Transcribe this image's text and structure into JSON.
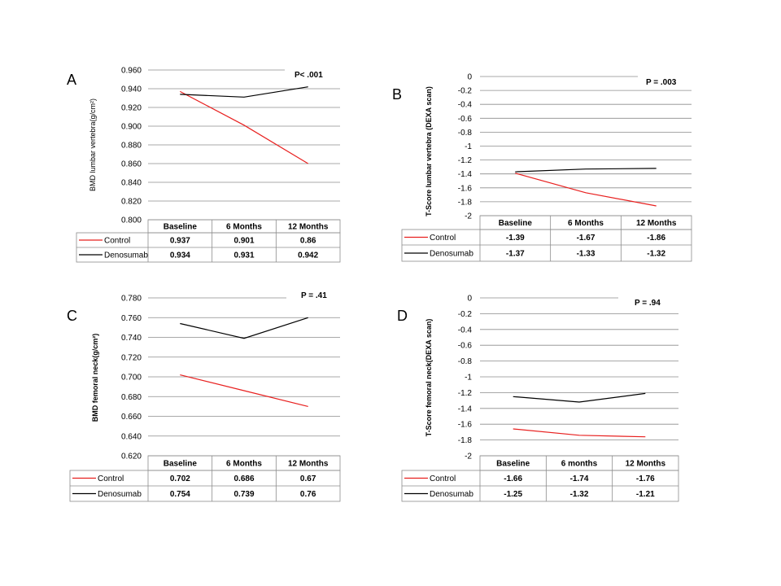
{
  "chart_data": [
    {
      "type": "line",
      "panel_label": "A",
      "ylabel": "BMD lumbar vertebra(g/cm²)",
      "ylabel_bold": false,
      "pvalue": "P< .001",
      "categories": [
        "Baseline",
        "6 Months",
        "12 Months"
      ],
      "ylim": [
        0.8,
        0.96
      ],
      "yticks": [
        "0.960",
        "0.940",
        "0.920",
        "0.900",
        "0.880",
        "0.860",
        "0.840",
        "0.820",
        "0.800"
      ],
      "series": [
        {
          "name": "Control",
          "color": "#e8201f",
          "values": [
            0.937,
            0.901,
            0.86
          ],
          "labels": [
            "0.937",
            "0.901",
            "0.86"
          ]
        },
        {
          "name": "Denosumab",
          "color": "#000000",
          "values": [
            0.934,
            0.931,
            0.942
          ],
          "labels": [
            "0.934",
            "0.931",
            "0.942"
          ]
        }
      ]
    },
    {
      "type": "line",
      "panel_label": "B",
      "ylabel": "T-Score lumbar vertebra (DEXA scan)",
      "ylabel_bold": true,
      "pvalue": "P = .003",
      "categories": [
        "Baseline",
        "6 Months",
        "12 Months"
      ],
      "ylim": [
        -2,
        0
      ],
      "yticks": [
        "0",
        "-0.2",
        "-0.4",
        "-0.6",
        "-0.8",
        "-1",
        "-1.2",
        "-1.4",
        "-1.6",
        "-1.8",
        "-2"
      ],
      "series": [
        {
          "name": "Control",
          "color": "#e8201f",
          "values": [
            -1.39,
            -1.67,
            -1.86
          ],
          "labels": [
            "-1.39",
            "-1.67",
            "-1.86"
          ]
        },
        {
          "name": "Denosumab",
          "color": "#000000",
          "values": [
            -1.37,
            -1.33,
            -1.32
          ],
          "labels": [
            "-1.37",
            "-1.33",
            "-1.32"
          ]
        }
      ]
    },
    {
      "type": "line",
      "panel_label": "C",
      "ylabel": "BMD femoral neck(g/cm²)",
      "ylabel_bold": true,
      "pvalue": "P = .41",
      "categories": [
        "Baseline",
        "6 Months",
        "12 Months"
      ],
      "ylim": [
        0.62,
        0.78
      ],
      "yticks": [
        "0.780",
        "0.760",
        "0.740",
        "0.720",
        "0.700",
        "0.680",
        "0.660",
        "0.640",
        "0.620"
      ],
      "series": [
        {
          "name": "Control",
          "color": "#e8201f",
          "values": [
            0.702,
            0.686,
            0.67
          ],
          "labels": [
            "0.702",
            "0.686",
            "0.67"
          ]
        },
        {
          "name": "Denosumab",
          "color": "#000000",
          "values": [
            0.754,
            0.739,
            0.76
          ],
          "labels": [
            "0.754",
            "0.739",
            "0.76"
          ]
        }
      ]
    },
    {
      "type": "line",
      "panel_label": "D",
      "ylabel": "T-Score femoral neck(DEXA scan)",
      "ylabel_bold": true,
      "pvalue": "P = .94",
      "categories": [
        "Baseline",
        "6 months",
        "12 Months"
      ],
      "ylim": [
        -2,
        0
      ],
      "yticks": [
        "0",
        "-0.2",
        "-0.4",
        "-0.6",
        "-0.8",
        "-1",
        "-1.2",
        "-1.4",
        "-1.6",
        "-1.8",
        "-2"
      ],
      "series": [
        {
          "name": "Control",
          "color": "#e8201f",
          "values": [
            -1.66,
            -1.74,
            -1.76
          ],
          "labels": [
            "-1.66",
            "-1.74",
            "-1.76"
          ]
        },
        {
          "name": "Denosumab",
          "color": "#000000",
          "values": [
            -1.25,
            -1.32,
            -1.21
          ],
          "labels": [
            "-1.25",
            "-1.32",
            "-1.21"
          ]
        }
      ]
    }
  ]
}
